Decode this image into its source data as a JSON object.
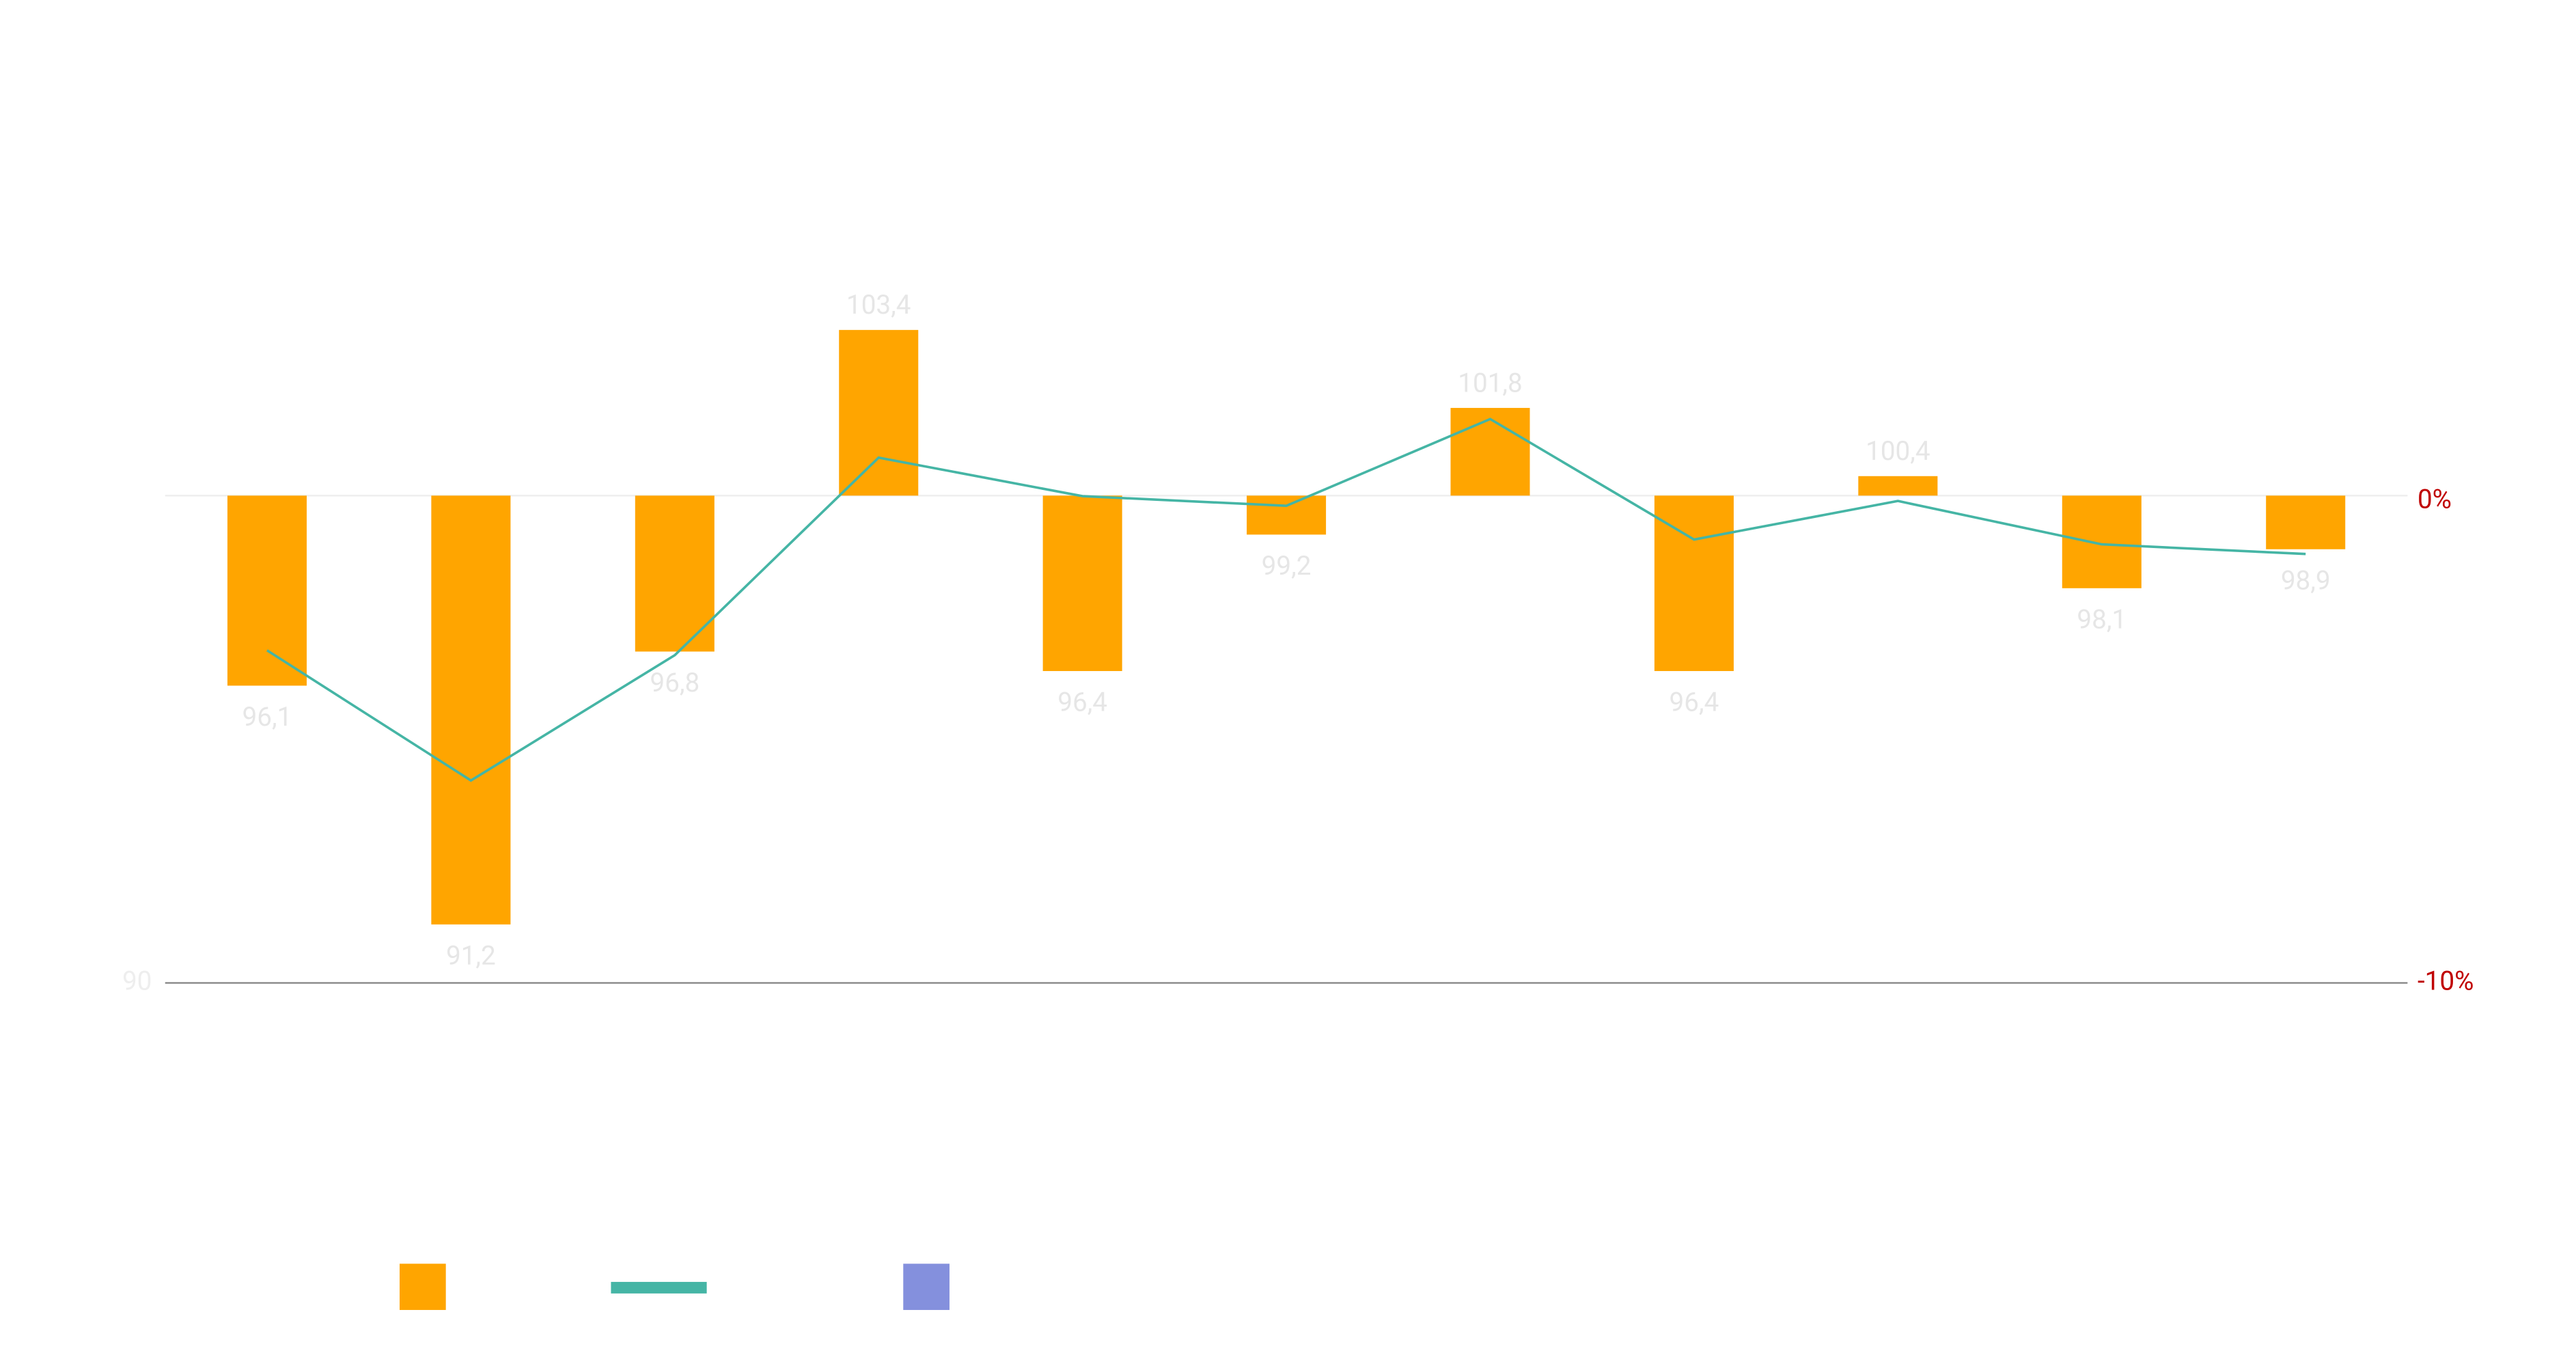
{
  "chart_data": {
    "type": "bar",
    "categories": [
      null,
      null,
      null,
      null,
      null,
      null,
      null,
      null,
      null,
      null,
      null
    ],
    "series": [
      {
        "type": "bar",
        "color": "#ffa500",
        "values": [
          96.1,
          91.2,
          96.8,
          103.4,
          96.4,
          99.2,
          101.8,
          96.4,
          100.4,
          98.1,
          98.9
        ],
        "value_labels": [
          "96,1",
          "91,2",
          "96,8",
          "103,4",
          "96,4",
          "99,2",
          "101,8",
          "96,4",
          "100,4",
          "98,1",
          "98,9"
        ]
      },
      {
        "type": "line",
        "axis": "y2",
        "color": "#45b5a5",
        "values": [
          -3.1,
          -5.8,
          -3.2,
          0.9,
          0.1,
          -0.1,
          1.7,
          -0.8,
          0,
          -0.9,
          -1.1
        ]
      },
      {
        "type": "bar",
        "color": "#8490dd",
        "values": [
          null,
          null,
          null,
          null,
          null,
          null,
          null,
          null,
          null,
          null,
          null
        ]
      }
    ],
    "ylim": [
      90,
      108
    ],
    "yticks": [
      90
    ],
    "y2lim": [
      -10,
      8.2
    ],
    "y2ticks": [
      {
        "value": 0,
        "label": "0%"
      },
      {
        "value": -10,
        "label": "-10%"
      }
    ]
  }
}
